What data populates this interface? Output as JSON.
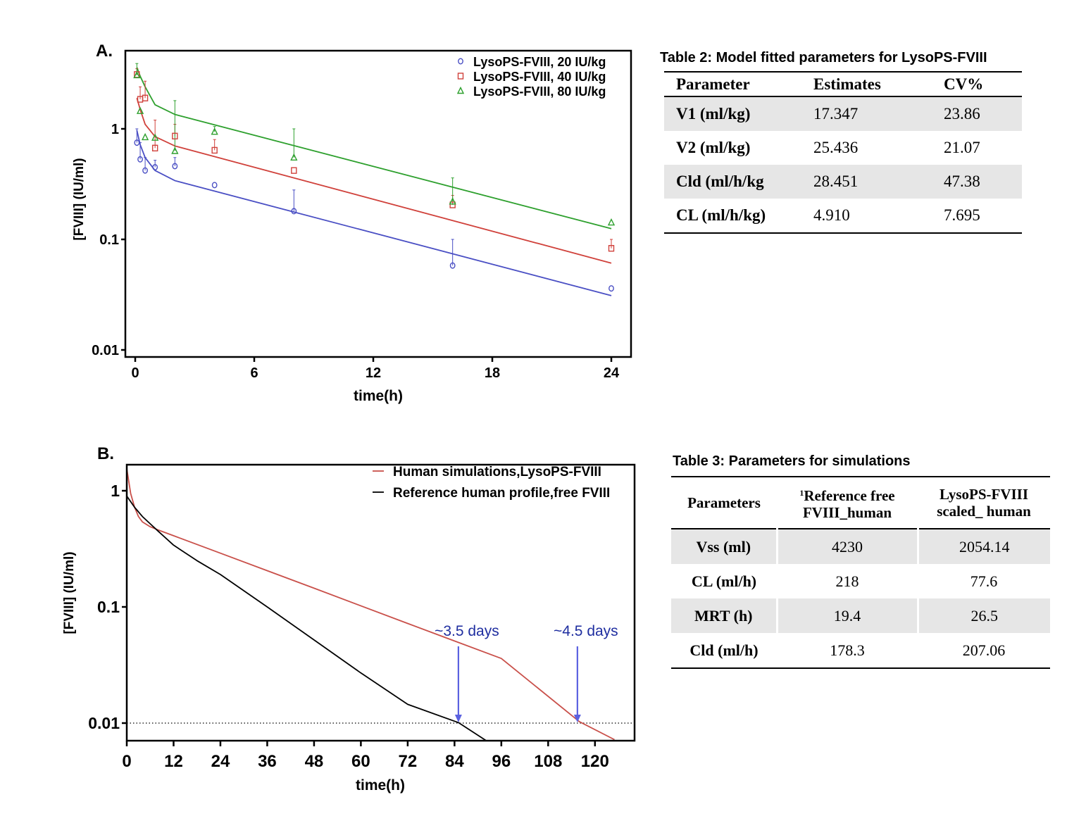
{
  "chart_data": [
    {
      "id": "A",
      "type": "scatter",
      "panel_label": "A.",
      "title": "",
      "xlabel": "time(h)",
      "ylabel": "[FVIII] (IU/ml)",
      "xlim": [
        0,
        24
      ],
      "ylim": [
        0.01,
        5
      ],
      "yscale": "log",
      "xticks": [
        "0",
        "6",
        "12",
        "18",
        "24"
      ],
      "xtick_values": [
        0,
        6,
        12,
        18,
        24
      ],
      "yticks": [
        "0.01",
        "0.1",
        "1"
      ],
      "ytick_values": [
        0.01,
        0.1,
        1
      ],
      "grid": false,
      "legend_position": "top-right",
      "series": [
        {
          "name": "LysoPS-FVIII, 20 IU/kg",
          "color": "#4a4fc4",
          "marker": "circle",
          "x": [
            0.083,
            0.25,
            0.5,
            1,
            2,
            4,
            8,
            16,
            24
          ],
          "y": [
            0.75,
            0.53,
            0.42,
            0.45,
            0.46,
            0.31,
            0.18,
            0.058,
            0.036
          ],
          "error_upper": [
            1.0,
            0.75,
            0.55,
            0.52,
            0.55,
            null,
            0.28,
            0.1,
            null
          ],
          "fit_x": [
            0.083,
            0.25,
            0.5,
            1,
            2,
            24
          ],
          "fit_y": [
            0.97,
            0.72,
            0.55,
            0.42,
            0.34,
            0.031
          ]
        },
        {
          "name": "LysoPS-FVIII, 40 IU/kg",
          "color": "#d0413b",
          "marker": "square",
          "x": [
            0.083,
            0.25,
            0.5,
            1,
            2,
            4,
            8,
            16,
            24
          ],
          "y": [
            3.1,
            1.85,
            1.9,
            0.67,
            0.86,
            0.64,
            0.42,
            0.205,
            0.083
          ],
          "error_upper": [
            3.5,
            2.4,
            2.7,
            1.2,
            1.1,
            0.8,
            null,
            0.25,
            0.1
          ],
          "fit_x": [
            0.083,
            0.25,
            0.5,
            1,
            2,
            24
          ],
          "fit_y": [
            1.9,
            1.5,
            1.1,
            0.85,
            0.7,
            0.061
          ]
        },
        {
          "name": "LysoPS-FVIII, 80 IU/kg",
          "color": "#2ea02e",
          "marker": "triangle",
          "x": [
            0.083,
            0.25,
            0.5,
            1,
            2,
            4,
            8,
            16,
            24
          ],
          "y": [
            3.05,
            1.45,
            0.84,
            0.83,
            0.63,
            0.94,
            0.55,
            0.22,
            0.142
          ],
          "error_upper": [
            3.9,
            null,
            null,
            null,
            1.8,
            1.05,
            1.0,
            0.36,
            null
          ],
          "fit_x": [
            0.083,
            0.25,
            0.5,
            1,
            2,
            24
          ],
          "fit_y": [
            3.6,
            3.0,
            2.4,
            1.65,
            1.35,
            0.125
          ]
        }
      ]
    },
    {
      "id": "B",
      "type": "line",
      "panel_label": "B.",
      "title": "",
      "xlabel": "time(h)",
      "ylabel": "[FVIII] (IU/ml)",
      "xlim": [
        0,
        130
      ],
      "ylim": [
        0.007,
        1.7
      ],
      "yscale": "log",
      "xticks": [
        "0",
        "12",
        "24",
        "36",
        "48",
        "60",
        "72",
        "84",
        "96",
        "108",
        "120"
      ],
      "xtick_values": [
        0,
        12,
        24,
        36,
        48,
        60,
        72,
        84,
        96,
        108,
        120
      ],
      "yticks": [
        "0.01",
        "0.1",
        "1"
      ],
      "ytick_values": [
        0.01,
        0.1,
        1
      ],
      "grid": false,
      "legend_position": "top-right",
      "reference_line": {
        "y": 0.01,
        "style": "dotted"
      },
      "series": [
        {
          "name": "Human simulations,LysoPS-FVIII",
          "color": "#c9504a",
          "x": [
            0,
            1,
            2,
            3,
            4,
            6,
            8,
            12,
            24,
            48,
            72,
            96,
            116,
            125
          ],
          "y": [
            1.55,
            0.95,
            0.72,
            0.6,
            0.54,
            0.49,
            0.46,
            0.41,
            0.29,
            0.145,
            0.072,
            0.036,
            0.0103,
            0.0072
          ]
        },
        {
          "name": "Reference human profile,free FVIII",
          "color": "#000000",
          "x": [
            0,
            2,
            4,
            6,
            8,
            12,
            18,
            24,
            36,
            48,
            60,
            72,
            85,
            92
          ],
          "y": [
            0.9,
            0.72,
            0.6,
            0.52,
            0.45,
            0.34,
            0.25,
            0.19,
            0.1,
            0.052,
            0.027,
            0.0145,
            0.0101,
            0.0071
          ]
        }
      ],
      "annotations": [
        {
          "text": "~3.5 days",
          "x": 85,
          "arrow_to_y": 0.01,
          "color": "#1f2ea0"
        },
        {
          "text": "~4.5 days",
          "x": 115.5,
          "arrow_to_y": 0.01,
          "color": "#1f2ea0"
        }
      ]
    }
  ],
  "table2": {
    "title": "Table 2:  Model fitted parameters for LysoPS-FVIII",
    "headers": [
      "Parameter",
      "Estimates",
      "CV%"
    ],
    "rows": [
      [
        "V1 (ml/kg)",
        "17.347",
        "23.86"
      ],
      [
        "V2 (ml/kg)",
        "25.436",
        "21.07"
      ],
      [
        "Cld (ml/h/kg",
        "28.451",
        "47.38"
      ],
      [
        "CL (ml/h/kg)",
        "4.910",
        "7.695"
      ]
    ]
  },
  "table3": {
    "title": "Table 3:  Parameters for simulations",
    "headers": {
      "c0": "Parameters",
      "c1_sup": "1",
      "c1_line1": "Reference free",
      "c1_line2": "FVIII_human",
      "c2_line1": "LysoPS-FVIII",
      "c2_line2": "scaled_ human"
    },
    "rows": [
      [
        "Vss (ml)",
        "4230",
        "2054.14"
      ],
      [
        "CL (ml/h)",
        "218",
        "77.6"
      ],
      [
        "MRT (h)",
        "19.4",
        "26.5"
      ],
      [
        "Cld (ml/h)",
        "178.3",
        "207.06"
      ]
    ]
  }
}
